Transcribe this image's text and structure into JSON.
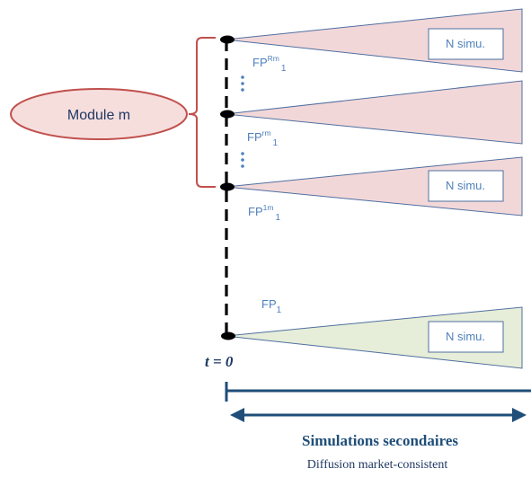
{
  "module": {
    "label": "Module m"
  },
  "branches": [
    {
      "id": "rm",
      "label_base": "FP",
      "label_sup": "Rm",
      "label_sub": "1",
      "box_label": "N simu.",
      "show_box": true
    },
    {
      "id": "r",
      "label_base": "FP",
      "label_sup": "rm",
      "label_sub": "1",
      "box_label": "",
      "show_box": false
    },
    {
      "id": "1m",
      "label_base": "FP",
      "label_sup": "1m",
      "label_sub": "1",
      "box_label": "N simu.",
      "show_box": true
    },
    {
      "id": "base",
      "label_base": "FP",
      "label_sup": "",
      "label_sub": "1",
      "box_label": "N simu.",
      "show_box": true
    }
  ],
  "time_label": "t = 0",
  "caption": {
    "title": "Simulations secondaires",
    "subtitle": "Diffusion market-consistent"
  },
  "colors": {
    "cone_pink": "#f2d7d9",
    "cone_green": "#e6edd8",
    "cone_stroke": "#4f6fa0",
    "bracket": "#c0504d",
    "ellipse_fill": "#f6dedd",
    "dashed_line": "#000000",
    "dots": "#4f81bd",
    "arrow": "#1f4e79"
  }
}
